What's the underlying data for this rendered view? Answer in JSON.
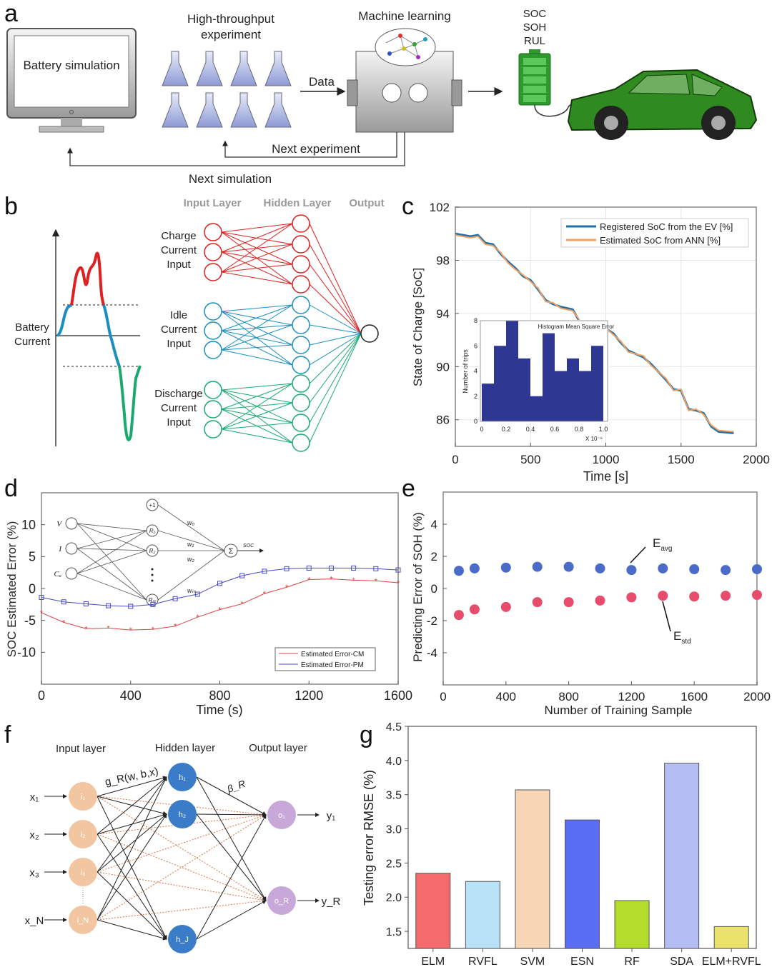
{
  "panel_labels": [
    "a",
    "b",
    "c",
    "d",
    "e",
    "f",
    "g"
  ],
  "panel_a": {
    "monitor_text": "Battery simulation",
    "experiment_title": [
      "High-throughput",
      "experiment"
    ],
    "data_label": "Data",
    "ml_title": "Machine learning",
    "battery_labels": [
      "SOC",
      "SOH",
      "RUL"
    ],
    "next_experiment": "Next experiment",
    "next_simulation": "Next simulation",
    "colors": {
      "battery": "#2e9a2e",
      "car": "#2f8a1f",
      "flask": "#a8b4e0"
    }
  },
  "panel_b": {
    "current_label": [
      "Battery",
      "Current"
    ],
    "layer_headers": [
      "Input Layer",
      "Hidden Layer",
      "Output"
    ],
    "groups": [
      {
        "label": [
          "Charge",
          "Current",
          "Input"
        ],
        "color": "#e02020"
      },
      {
        "label": [
          "Idle",
          "Current",
          "Input"
        ],
        "color": "#1a8fc0"
      },
      {
        "label": [
          "Discharge",
          "Current",
          "Input"
        ],
        "color": "#1aaa70"
      }
    ]
  },
  "chart_data": [
    {
      "id": "c",
      "type": "line",
      "xlabel": "Time [s]",
      "ylabel": "State of Charge [SoC]",
      "xlim": [
        0,
        2000
      ],
      "ylim": [
        84,
        102
      ],
      "xticks": [
        0,
        500,
        1000,
        1500,
        2000
      ],
      "yticks": [
        86,
        90,
        94,
        98,
        102
      ],
      "grid": true,
      "legend": "top-right",
      "series": [
        {
          "name": "Registered SoC from the EV [%]",
          "color": "#1f6fa8",
          "x": [
            0,
            100,
            150,
            200,
            250,
            300,
            350,
            400,
            450,
            500,
            550,
            600,
            650,
            700,
            780,
            820,
            850,
            900,
            950,
            980,
            1050,
            1100,
            1150,
            1250,
            1300,
            1400,
            1450,
            1500,
            1550,
            1600,
            1650,
            1700,
            1750,
            1850
          ],
          "y": [
            100,
            99.8,
            99.9,
            99.3,
            99.2,
            98.5,
            97.9,
            97.4,
            96.8,
            96.5,
            95.8,
            95,
            94.7,
            94.5,
            94.3,
            93.5,
            92.5,
            92,
            92.8,
            93,
            92.5,
            91.8,
            91.2,
            90.7,
            90.2,
            89,
            88.3,
            88.2,
            86.8,
            86.7,
            86.5,
            85.5,
            85.1,
            85
          ]
        },
        {
          "name": "Estimated SoC from ANN [%]",
          "color": "#f0a060",
          "x": [
            0,
            100,
            150,
            200,
            250,
            300,
            350,
            400,
            450,
            500,
            550,
            600,
            650,
            700,
            780,
            820,
            850,
            900,
            950,
            980,
            1050,
            1100,
            1150,
            1250,
            1300,
            1400,
            1450,
            1500,
            1550,
            1600,
            1650,
            1700,
            1750,
            1850
          ],
          "y": [
            99.9,
            99.7,
            99.8,
            99.2,
            99.1,
            98.6,
            97.8,
            97.3,
            96.9,
            96.4,
            95.9,
            94.9,
            94.8,
            94.4,
            94.2,
            93.6,
            92.4,
            92.1,
            92.7,
            93.1,
            92.4,
            91.9,
            91.1,
            90.8,
            90.1,
            89.1,
            88.2,
            88.3,
            86.7,
            86.8,
            86.4,
            85.6,
            85.2,
            85.1
          ]
        }
      ],
      "inset": {
        "type": "bar",
        "title": "Histogram Mean Square Error",
        "ylabel": "Number of trips",
        "xlabel_multiplier": "X 10⁻⁶",
        "xticks": [
          "0",
          "0.2",
          "0.4",
          "0.6",
          "0.8",
          "1.0"
        ],
        "yticks": [
          "0",
          "2",
          "4",
          "6",
          "8"
        ],
        "bin_edges": [
          0,
          0.1,
          0.2,
          0.3,
          0.4,
          0.5,
          0.6,
          0.7,
          0.8,
          0.9,
          1.0
        ],
        "counts": [
          3,
          6,
          8,
          5,
          2,
          7,
          4,
          5,
          4,
          6
        ],
        "ylim": [
          0,
          8
        ],
        "color": "#2e3892"
      }
    },
    {
      "id": "d",
      "type": "line",
      "xlabel": "Time (s)",
      "ylabel": "SOC Estimated Error (%)",
      "xlim": [
        0,
        1600
      ],
      "ylim": [
        -15,
        15
      ],
      "xticks": [
        0,
        400,
        800,
        1200,
        1600
      ],
      "yticks": [
        -10,
        -5,
        0,
        5,
        10
      ],
      "legend": "bottom-right",
      "x": [
        0,
        100,
        200,
        300,
        400,
        500,
        600,
        700,
        800,
        900,
        1000,
        1100,
        1200,
        1300,
        1400,
        1500,
        1600
      ],
      "series": [
        {
          "name": "Estimated Error-CM",
          "color": "#e04040",
          "marker": "star",
          "values": [
            -3.8,
            -5.3,
            -6.3,
            -6.2,
            -6.5,
            -6.4,
            -5.9,
            -4.5,
            -3.3,
            -2.4,
            -0.8,
            0.2,
            1.4,
            1.5,
            1.3,
            1.2,
            0.9
          ]
        },
        {
          "name": "Estimated Error-PM",
          "color": "#4848c8",
          "marker": "square",
          "values": [
            -1.4,
            -2.1,
            -2.4,
            -2.7,
            -2.8,
            -2.5,
            -1.6,
            -0.9,
            0.8,
            2.0,
            2.7,
            3.1,
            3.2,
            3.2,
            3.2,
            3.1,
            2.9
          ]
        }
      ],
      "inset_network": {
        "inputs": [
          "V",
          "I",
          "Cₐ"
        ],
        "hidden": [
          "R₁",
          "R₂",
          "Rₘ"
        ],
        "bias": "+1",
        "weights": [
          "w₀",
          "w₁",
          "w₂",
          "wₘ"
        ],
        "sum": "Σ",
        "output": "SOC"
      }
    },
    {
      "id": "e",
      "type": "scatter",
      "xlabel": "Number of Training Sample",
      "ylabel": "Predicting Error of SOH (%)",
      "xlim": [
        0,
        2000
      ],
      "ylim": [
        -6,
        6
      ],
      "xticks": [
        0,
        400,
        800,
        1200,
        1600,
        2000
      ],
      "yticks": [
        -4,
        -2,
        0,
        2,
        4
      ],
      "x": [
        100,
        200,
        400,
        600,
        800,
        1000,
        1200,
        1400,
        1600,
        1800,
        2000
      ],
      "series": [
        {
          "name": "E",
          "subscript": "avg",
          "color": "#4a6cc8",
          "values": [
            1.1,
            1.25,
            1.3,
            1.35,
            1.35,
            1.25,
            1.15,
            1.25,
            1.2,
            1.15,
            1.2
          ]
        },
        {
          "name": "E",
          "subscript": "std",
          "color": "#e84c6c",
          "values": [
            -1.65,
            -1.3,
            -1.15,
            -0.85,
            -0.85,
            -0.75,
            -0.55,
            -0.45,
            -0.5,
            -0.45,
            -0.4
          ]
        }
      ]
    },
    {
      "id": "g",
      "type": "bar",
      "ylabel": "Testing error RMSE (%)",
      "ylim": [
        1.25,
        4.5
      ],
      "yticks": [
        "1.5",
        "2.0",
        "2.5",
        "3.0",
        "3.5",
        "4.0",
        "4.5"
      ],
      "categories": [
        "ELM",
        "RVFL",
        "SVM",
        "ESN",
        "RF",
        "SDA",
        "ELM+RVFL"
      ],
      "values": [
        2.35,
        2.23,
        3.57,
        3.13,
        1.95,
        3.96,
        1.57
      ],
      "colors": [
        "#f56b6b",
        "#b8e2f8",
        "#f8d5b5",
        "#5a6df5",
        "#b4dc2c",
        "#b5bdf5",
        "#ebe26a"
      ]
    }
  ],
  "panel_f": {
    "layer_headers": [
      "Input layer",
      "Hidden layer",
      "Output layer"
    ],
    "inputs": [
      "x₁",
      "x₂",
      "x₃",
      "x_N"
    ],
    "input_nodes": [
      "i₁",
      "i₂",
      "i₃",
      "i_N"
    ],
    "hidden_nodes": [
      "h₁",
      "h₂",
      "h_J"
    ],
    "output_nodes": [
      "o₁",
      "o_R"
    ],
    "outputs": [
      "y₁",
      "y_R"
    ],
    "activation_label": "g_R(w, b,x)",
    "beta_label": "β_R",
    "colors": {
      "input": "#f2c6a0",
      "hidden": "#3a7cc8",
      "output": "#c8a8d8",
      "random": "#e07040"
    }
  }
}
